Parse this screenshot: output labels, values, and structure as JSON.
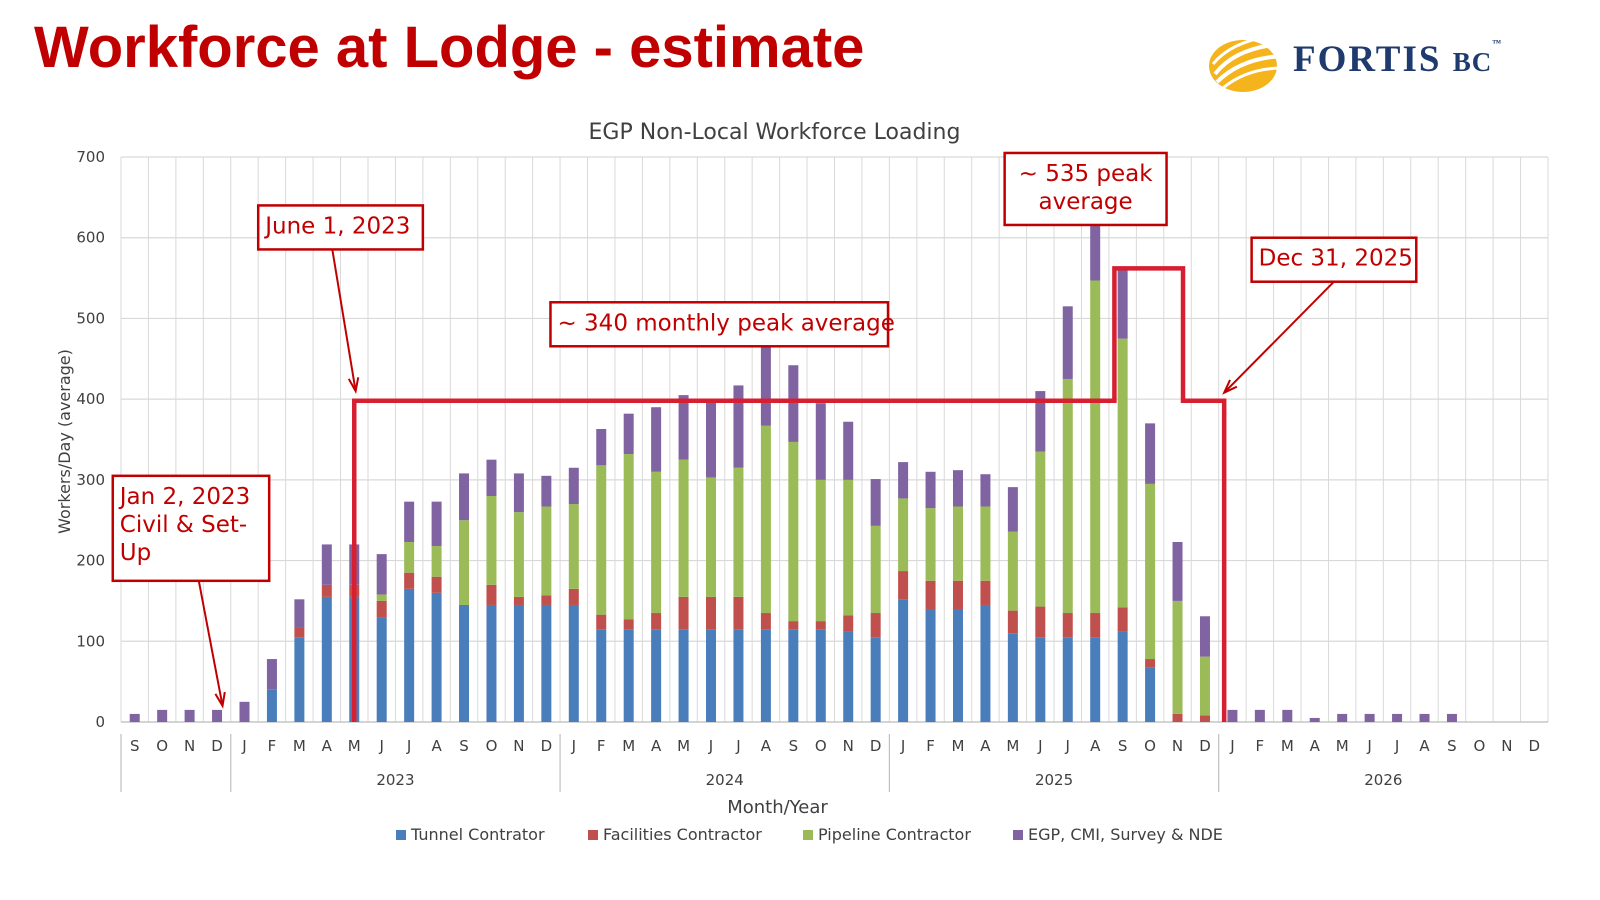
{
  "slide": {
    "title": "Workforce at Lodge - estimate",
    "logo_text": "FORTIS",
    "logo_suffix": "BC",
    "logo_tm": "™"
  },
  "chart_data": {
    "type": "bar",
    "stacked": true,
    "title": "EGP Non-Local Workforce Loading",
    "xlabel": "Month/Year",
    "ylabel": "Workers/Day (average)",
    "ylim": [
      0,
      700
    ],
    "yticks": [
      0,
      100,
      200,
      300,
      400,
      500,
      600,
      700
    ],
    "grid": true,
    "legend_position": "bottom",
    "categories": [
      "S",
      "O",
      "N",
      "D",
      "J",
      "F",
      "M",
      "A",
      "M",
      "J",
      "J",
      "A",
      "S",
      "O",
      "N",
      "D",
      "J",
      "F",
      "M",
      "A",
      "M",
      "J",
      "J",
      "A",
      "S",
      "O",
      "N",
      "D",
      "J",
      "F",
      "M",
      "A",
      "M",
      "J",
      "J",
      "A",
      "S",
      "O",
      "N",
      "D",
      "J",
      "F",
      "M",
      "A",
      "M",
      "J",
      "J",
      "A",
      "S",
      "O",
      "N",
      "D"
    ],
    "years": [
      {
        "label": "2023",
        "start": 4,
        "end": 16
      },
      {
        "label": "2024",
        "start": 16,
        "end": 28
      },
      {
        "label": "2025",
        "start": 28,
        "end": 40
      },
      {
        "label": "2026",
        "start": 40,
        "end": 52
      }
    ],
    "series": [
      {
        "name": "Tunnel Contrator",
        "color": "#4a7ebb",
        "values": [
          0,
          0,
          0,
          0,
          0,
          40,
          105,
          155,
          155,
          130,
          165,
          160,
          145,
          145,
          145,
          145,
          145,
          115,
          115,
          115,
          115,
          115,
          115,
          115,
          115,
          115,
          112,
          105,
          152,
          140,
          140,
          145,
          110,
          105,
          105,
          105,
          112,
          68,
          0,
          0,
          0,
          0,
          0,
          0,
          0,
          0,
          0,
          0,
          0,
          0,
          0,
          0
        ]
      },
      {
        "name": "Facilities Contractor",
        "color": "#c0504d",
        "values": [
          0,
          0,
          0,
          0,
          0,
          0,
          12,
          15,
          15,
          20,
          20,
          20,
          0,
          25,
          10,
          12,
          20,
          18,
          12,
          20,
          40,
          40,
          40,
          20,
          10,
          10,
          20,
          30,
          35,
          35,
          35,
          30,
          28,
          38,
          30,
          30,
          30,
          10,
          10,
          8,
          0,
          0,
          0,
          0,
          0,
          0,
          0,
          0,
          0,
          0,
          0,
          0
        ]
      },
      {
        "name": "Pipeline Contractor",
        "color": "#9bbb59",
        "values": [
          0,
          0,
          0,
          0,
          0,
          0,
          0,
          0,
          0,
          8,
          38,
          38,
          105,
          110,
          105,
          110,
          105,
          185,
          205,
          175,
          170,
          148,
          160,
          232,
          222,
          175,
          168,
          108,
          90,
          90,
          92,
          92,
          98,
          192,
          290,
          412,
          333,
          217,
          140,
          73,
          0,
          0,
          0,
          0,
          0,
          0,
          0,
          0,
          0,
          0,
          0,
          0
        ]
      },
      {
        "name": "EGP, CMI, Survey & NDE",
        "color": "#8064a2",
        "values": [
          10,
          15,
          15,
          15,
          25,
          38,
          35,
          50,
          50,
          50,
          50,
          55,
          58,
          45,
          48,
          38,
          45,
          45,
          50,
          80,
          80,
          95,
          102,
          97,
          95,
          95,
          72,
          58,
          45,
          45,
          45,
          40,
          55,
          75,
          90,
          85,
          85,
          75,
          73,
          50,
          15,
          15,
          15,
          5,
          10,
          10,
          10,
          10,
          10,
          0,
          0,
          0
        ]
      }
    ],
    "envelope": [
      [
        8.5,
        0
      ],
      [
        8.5,
        398
      ],
      [
        36.2,
        398
      ],
      [
        36.2,
        562
      ],
      [
        38.7,
        562
      ],
      [
        38.7,
        398
      ],
      [
        40.2,
        398
      ],
      [
        40.2,
        0
      ]
    ],
    "annotations": [
      {
        "lines": [
          "June 1, 2023"
        ],
        "arrow_to": [
          8.55,
          410
        ],
        "box": {
          "x": 5.0,
          "yTop": 640,
          "w": 6.0,
          "h": 44
        }
      },
      {
        "lines": [
          "Jan 2, 2023",
          "Civil & Set-",
          "Up"
        ],
        "arrow_to": [
          3.7,
          20
        ],
        "box": {
          "x": -0.3,
          "yTop": 305,
          "w": 5.7,
          "h": 105
        }
      },
      {
        "lines": [
          "~ 340 monthly peak average"
        ],
        "arrow_to": null,
        "box": {
          "x": 15.65,
          "yTop": 520,
          "w": 12.3,
          "h": 44
        }
      },
      {
        "lines": [
          "~ 535 peak",
          "average"
        ],
        "arrow_to": null,
        "box": {
          "x": 32.2,
          "yTop": 705,
          "w": 5.9,
          "h": 72
        }
      },
      {
        "lines": [
          "Dec 31, 2025"
        ],
        "arrow_to": [
          40.2,
          408
        ],
        "box": {
          "x": 41.2,
          "yTop": 600,
          "w": 6.0,
          "h": 44
        }
      }
    ]
  }
}
